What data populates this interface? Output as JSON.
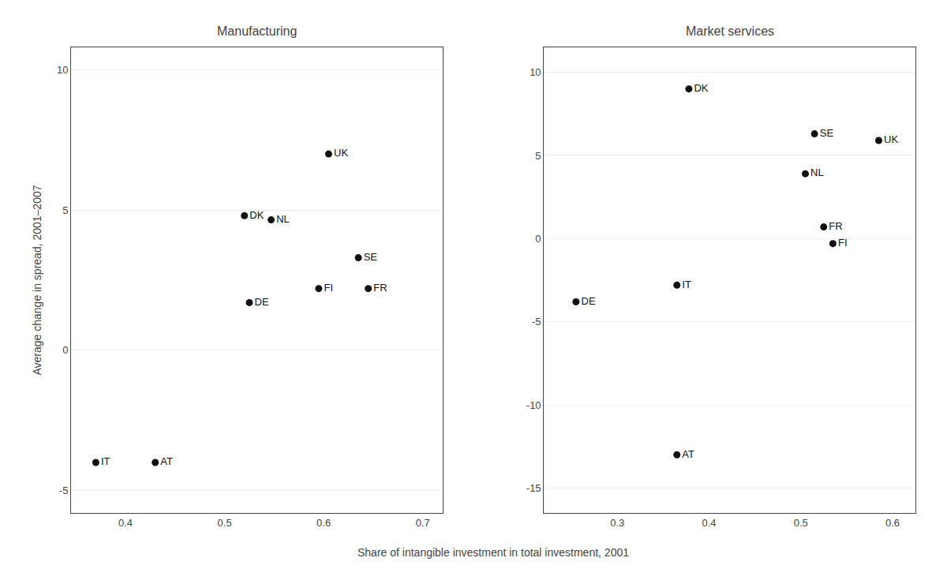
{
  "chart_data": [
    {
      "type": "scatter",
      "title": "Manufacturing",
      "ylabel": "Average change in spread, 2001–2007",
      "xlabel": "Share of intangible investment in total investment, 2001",
      "labels": [
        "IT",
        "AT",
        "DK",
        "NL",
        "DE",
        "UK",
        "FI",
        "SE",
        "FR"
      ],
      "x": [
        0.37,
        0.43,
        0.52,
        0.547,
        0.525,
        0.605,
        0.595,
        0.635,
        0.645
      ],
      "values": [
        -4.0,
        -4.0,
        4.8,
        4.65,
        1.7,
        7.0,
        2.2,
        3.3,
        2.2
      ],
      "color": "#111111",
      "xlim": [
        0.345,
        0.72
      ],
      "xticks": [
        0.4,
        0.5,
        0.6,
        0.7
      ],
      "ylim": [
        -5.8,
        10.8
      ],
      "yticks": [
        -5,
        0,
        5,
        10
      ],
      "grid": "y"
    },
    {
      "type": "scatter",
      "title": "Market services",
      "labels": [
        "DE",
        "IT",
        "AT",
        "DK",
        "NL",
        "SE",
        "FR",
        "FI",
        "UK"
      ],
      "x": [
        0.255,
        0.365,
        0.365,
        0.378,
        0.505,
        0.515,
        0.525,
        0.535,
        0.585
      ],
      "values": [
        -3.8,
        -2.8,
        -13.0,
        9.0,
        3.9,
        6.3,
        0.7,
        -0.3,
        5.9
      ],
      "color": "#111111",
      "xlim": [
        0.22,
        0.625
      ],
      "xticks": [
        0.3,
        0.4,
        0.5,
        0.6
      ],
      "ylim": [
        -16.5,
        11.5
      ],
      "yticks": [
        -15,
        -10,
        -5,
        0,
        5,
        10
      ],
      "grid": "y"
    }
  ]
}
